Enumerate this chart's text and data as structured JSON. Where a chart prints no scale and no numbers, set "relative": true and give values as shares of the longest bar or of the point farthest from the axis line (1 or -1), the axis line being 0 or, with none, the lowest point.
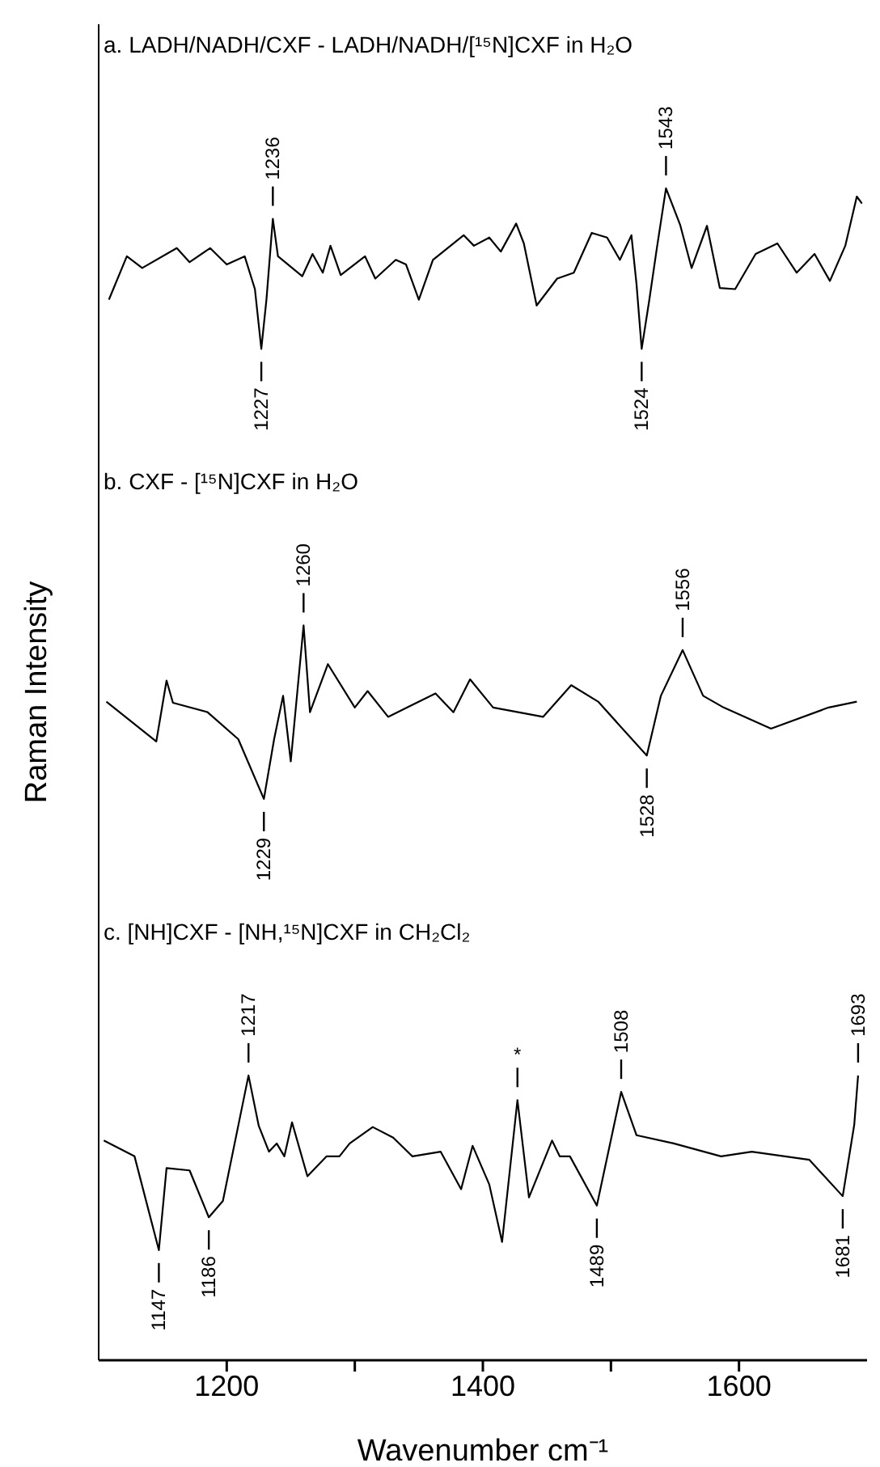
{
  "chart_data": {
    "type": "line",
    "relative": true,
    "xlabel": "Wavenumber cm⁻¹",
    "ylabel": "Raman Intensity",
    "xlim": [
      1100,
      1700
    ],
    "xticks": [
      1200,
      {
        "value": 1300,
        "label": null
      },
      1400,
      {
        "value": 1500,
        "label": null
      },
      1600
    ],
    "grid": false,
    "legend": false,
    "marker": "none",
    "line_style": "solid",
    "series": [
      {
        "color": "#000000",
        "x": [
          1108,
          1122,
          1134,
          1161,
          1171,
          1187,
          1200,
          1214,
          1222,
          1227,
          1231,
          1236,
          1240,
          1259,
          1267,
          1275,
          1281,
          1289,
          1308,
          1316,
          1332,
          1340,
          1350,
          1361,
          1385,
          1393,
          1405,
          1414,
          1426,
          1432,
          1442,
          1458,
          1471,
          1485,
          1497,
          1507,
          1516,
          1520,
          1524,
          1530,
          1536,
          1543,
          1554,
          1563,
          1575,
          1585,
          1597,
          1613,
          1630,
          1645,
          1659,
          1671,
          1683,
          1692,
          1696
        ],
        "values": [
          0.905,
          0.942,
          0.932,
          0.949,
          0.937,
          0.949,
          0.935,
          0.942,
          0.914,
          0.863,
          0.905,
          0.974,
          0.942,
          0.925,
          0.944,
          0.928,
          0.951,
          0.926,
          0.942,
          0.923,
          0.939,
          0.935,
          0.905,
          0.939,
          0.96,
          0.951,
          0.958,
          0.946,
          0.97,
          0.953,
          0.9,
          0.923,
          0.928,
          0.962,
          0.958,
          0.939,
          0.96,
          0.918,
          0.863,
          0.905,
          0.95,
          1.0,
          0.969,
          0.932,
          0.968,
          0.915,
          0.914,
          0.944,
          0.953,
          0.928,
          0.944,
          0.921,
          0.951,
          0.993,
          0.987
        ]
      },
      {
        "color": "#000000",
        "x": [
          1106,
          1145,
          1153,
          1158,
          1185,
          1209,
          1229,
          1237,
          1244,
          1250,
          1260,
          1265,
          1279,
          1300,
          1310,
          1326,
          1363,
          1377,
          1390,
          1408,
          1447,
          1469,
          1490,
          1528,
          1539,
          1556,
          1572,
          1588,
          1625,
          1670,
          1692
        ],
        "values": [
          0.562,
          0.528,
          0.58,
          0.561,
          0.553,
          0.53,
          0.479,
          0.53,
          0.567,
          0.511,
          0.627,
          0.553,
          0.594,
          0.557,
          0.571,
          0.549,
          0.569,
          0.553,
          0.581,
          0.557,
          0.549,
          0.576,
          0.562,
          0.516,
          0.567,
          0.606,
          0.567,
          0.557,
          0.539,
          0.557,
          0.562
        ]
      },
      {
        "color": "#000000",
        "x": [
          1104,
          1128,
          1147,
          1153,
          1171,
          1186,
          1197,
          1217,
          1225,
          1233,
          1239,
          1245,
          1251,
          1263,
          1278,
          1288,
          1296,
          1314,
          1330,
          1345,
          1367,
          1383,
          1392,
          1405,
          1415,
          1427,
          1436,
          1454,
          1460,
          1468,
          1489,
          1508,
          1520,
          1549,
          1586,
          1610,
          1655,
          1681,
          1690,
          1693
        ],
        "values": [
          0.1875,
          0.174,
          0.094,
          0.164,
          0.162,
          0.122,
          0.136,
          0.243,
          0.2,
          0.178,
          0.185,
          0.174,
          0.203,
          0.157,
          0.174,
          0.174,
          0.185,
          0.199,
          0.19,
          0.174,
          0.178,
          0.146,
          0.183,
          0.15,
          0.101,
          0.222,
          0.139,
          0.1875,
          0.174,
          0.174,
          0.132,
          0.229,
          0.192,
          0.185,
          0.174,
          0.178,
          0.171,
          0.14,
          0.201,
          0.243
        ]
      }
    ],
    "annotations": [
      "a. LADH/NADH/CXF - LADH/NADH/[¹⁵N]CXF in H₂O",
      "b. CXF - [¹⁵N]CXF in H₂O",
      "c. [NH]CXF - [NH,¹⁵N]CXF in CH₂Cl₂",
      {
        "text": "1236",
        "x": 1236,
        "y": 0.974
      },
      {
        "text": "1543",
        "x": 1543,
        "y": 1.0
      },
      {
        "text": "1227",
        "x": 1227,
        "y": 0.863
      },
      {
        "text": "1524",
        "x": 1524,
        "y": 0.863
      },
      {
        "text": "1260",
        "x": 1260,
        "y": 0.627
      },
      {
        "text": "1556",
        "x": 1556,
        "y": 0.606
      },
      {
        "text": "1229",
        "x": 1229,
        "y": 0.479
      },
      {
        "text": "1528",
        "x": 1528,
        "y": 0.516
      },
      {
        "text": "1217",
        "x": 1217,
        "y": 0.243
      },
      {
        "text": "*",
        "x": 1427,
        "y": 0.222
      },
      {
        "text": "1508",
        "x": 1508,
        "y": 0.229
      },
      {
        "text": "1693",
        "x": 1693,
        "y": 0.243
      },
      {
        "text": "1147",
        "x": 1147,
        "y": 0.094
      },
      {
        "text": "1186",
        "x": 1186,
        "y": 0.122
      },
      {
        "text": "1489",
        "x": 1489,
        "y": 0.132
      },
      {
        "text": "1681",
        "x": 1681,
        "y": 0.14
      }
    ]
  }
}
